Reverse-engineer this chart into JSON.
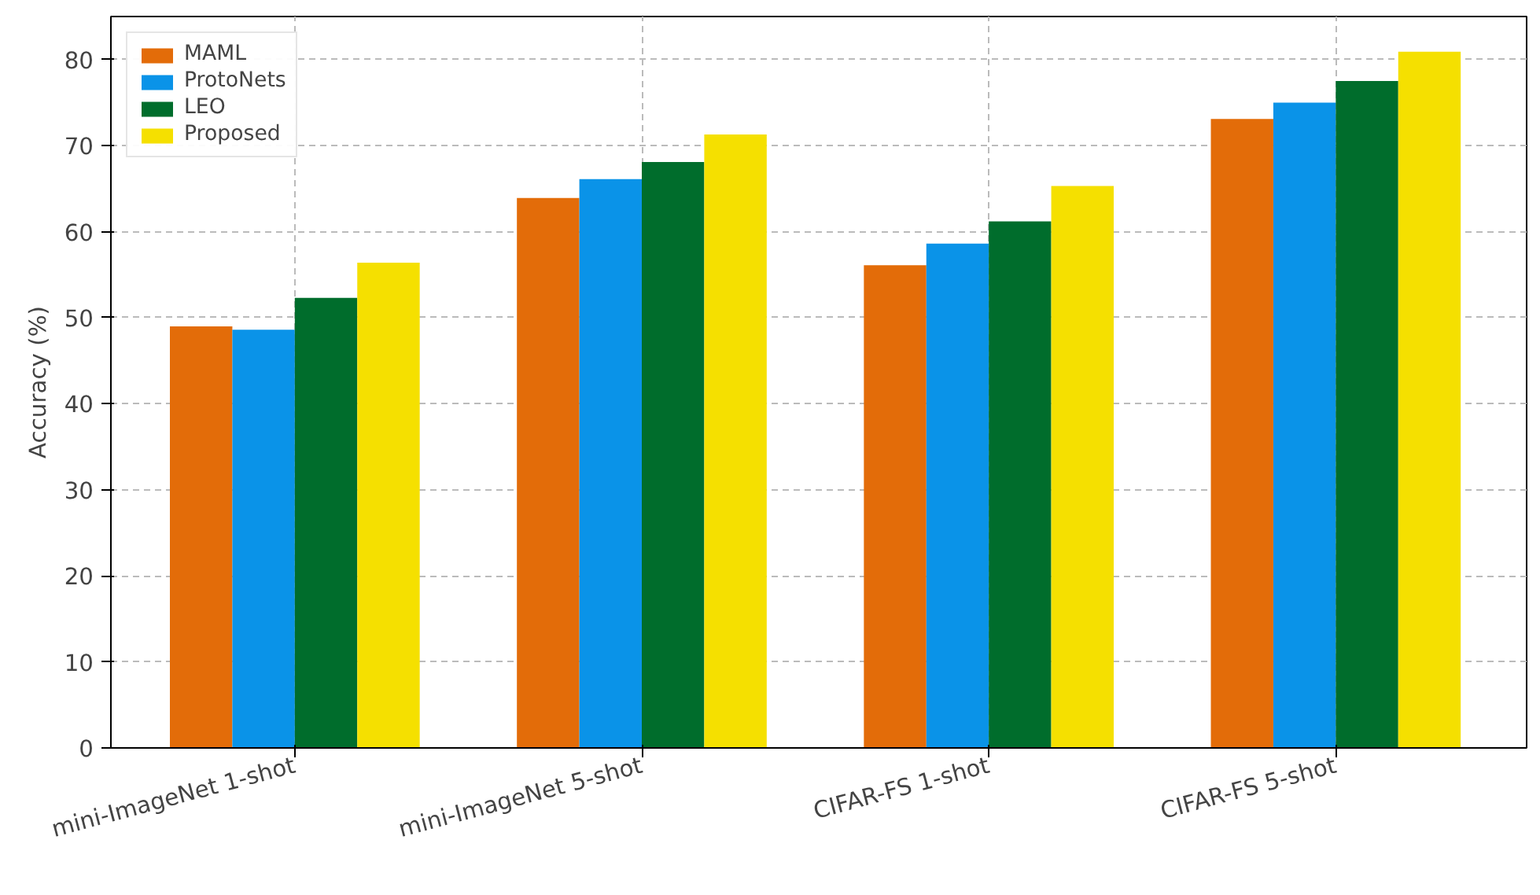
{
  "chart_data": {
    "type": "bar",
    "ylabel": "Accuracy (%)",
    "categories": [
      "mini-ImageNet 1-shot",
      "mini-ImageNet 5-shot",
      "CIFAR-FS 1-shot",
      "CIFAR-FS 5-shot"
    ],
    "series": [
      {
        "name": "MAML",
        "color": "#e36c09",
        "values": [
          49.0,
          63.9,
          56.1,
          73.1
        ]
      },
      {
        "name": "ProtoNets",
        "color": "#0a93e8",
        "values": [
          48.6,
          66.1,
          58.6,
          75.0
        ]
      },
      {
        "name": "LEO",
        "color": "#006d2c",
        "values": [
          52.3,
          68.1,
          61.2,
          77.5
        ]
      },
      {
        "name": "Proposed",
        "color": "#f5e000",
        "values": [
          56.4,
          71.3,
          65.3,
          80.9
        ]
      }
    ],
    "ylim": [
      0,
      85
    ],
    "yticks": [
      0,
      10,
      20,
      30,
      40,
      50,
      60,
      70,
      80
    ],
    "grid": true,
    "legend": "top left"
  }
}
